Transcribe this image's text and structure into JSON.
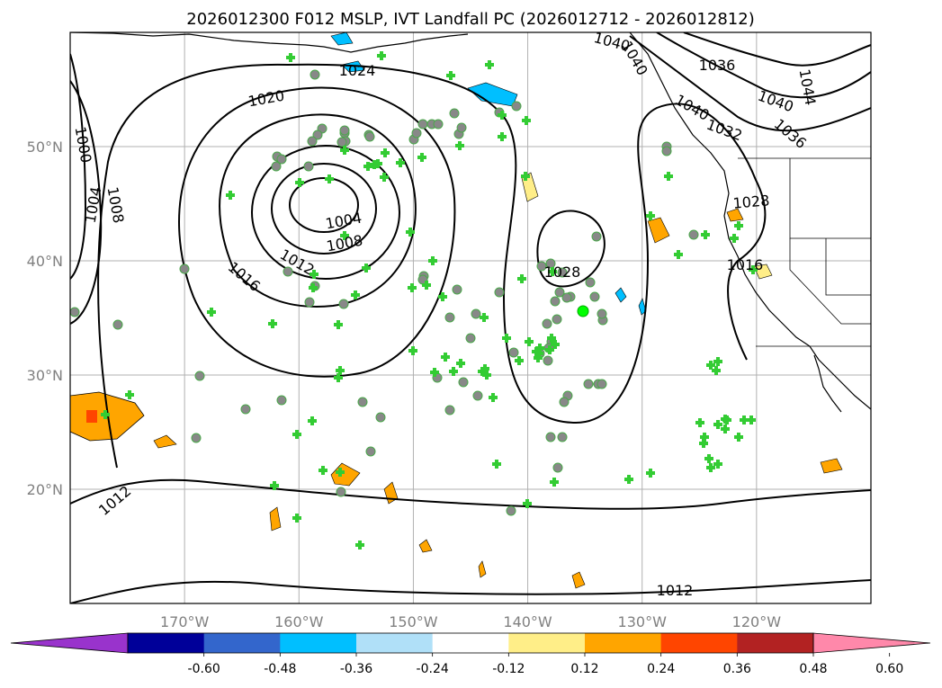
{
  "title": "2026012300 F012 MSLP, IVT Landfall PC (2026012712 - 2026012812)",
  "map": {
    "lon_range": [
      -180,
      -110
    ],
    "lat_range": [
      10,
      60
    ],
    "lat_ticks": [
      {
        "value": 20,
        "label": "20°N"
      },
      {
        "value": 30,
        "label": "30°N"
      },
      {
        "value": 40,
        "label": "40°N"
      },
      {
        "value": 50,
        "label": "50°N"
      }
    ],
    "lon_ticks": [
      {
        "value": -170,
        "label": "170°W"
      },
      {
        "value": -160,
        "label": "160°W"
      },
      {
        "value": -150,
        "label": "150°W"
      },
      {
        "value": -140,
        "label": "140°W"
      },
      {
        "value": -130,
        "label": "130°W"
      },
      {
        "value": -120,
        "label": "120°W"
      }
    ],
    "gridlines": true,
    "isobar_labels": [
      "1024",
      "1020",
      "1000",
      "1004",
      "1008",
      "1004",
      "1008",
      "1012",
      "1016",
      "1028",
      "1016",
      "1012",
      "1012",
      "1040",
      "1040",
      "1036",
      "1044",
      "1040",
      "1036",
      "1032",
      "1028",
      "1040"
    ]
  },
  "colorbar": {
    "labels": [
      "-0.60",
      "-0.48",
      "-0.36",
      "-0.24",
      "-0.12",
      "0.12",
      "0.24",
      "0.36",
      "0.48",
      "0.60"
    ],
    "colors": [
      "#9933cc",
      "#000099",
      "#3366cc",
      "#00bfff",
      "#b0e0f8",
      "#ffffff",
      "#ffee88",
      "#ffa500",
      "#ff4500",
      "#b22222",
      "#ff88aa"
    ],
    "extend": "both"
  },
  "markers": {
    "circle_color": "#888888",
    "plus_color": "#33cc33"
  }
}
